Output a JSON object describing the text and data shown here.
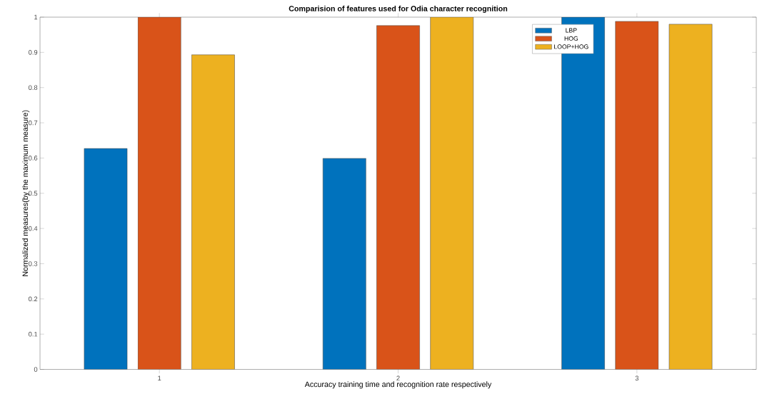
{
  "chart_data": {
    "type": "bar",
    "title": "Comparision of features used for Odia character recognition",
    "xlabel": "Accuracy training time and recognition rate respectively",
    "ylabel": "Normalized measures(by the maximum measure)",
    "categories": [
      "1",
      "2",
      "3"
    ],
    "series": [
      {
        "name": "LBP",
        "color": "#0072bd",
        "values": [
          0.627,
          0.599,
          1.0
        ]
      },
      {
        "name": "HOG",
        "color": "#d95319",
        "values": [
          1.0,
          0.976,
          0.988
        ]
      },
      {
        "name": "LOOP+HOG",
        "color": "#edb120",
        "values": [
          0.893,
          1.0,
          0.98
        ]
      }
    ],
    "ylim": [
      0,
      1
    ],
    "yticks": [
      0,
      0.1,
      0.2,
      0.3,
      0.4,
      0.5,
      0.6,
      0.7,
      0.8,
      0.9,
      1
    ],
    "grid": false,
    "legend": "top right"
  }
}
